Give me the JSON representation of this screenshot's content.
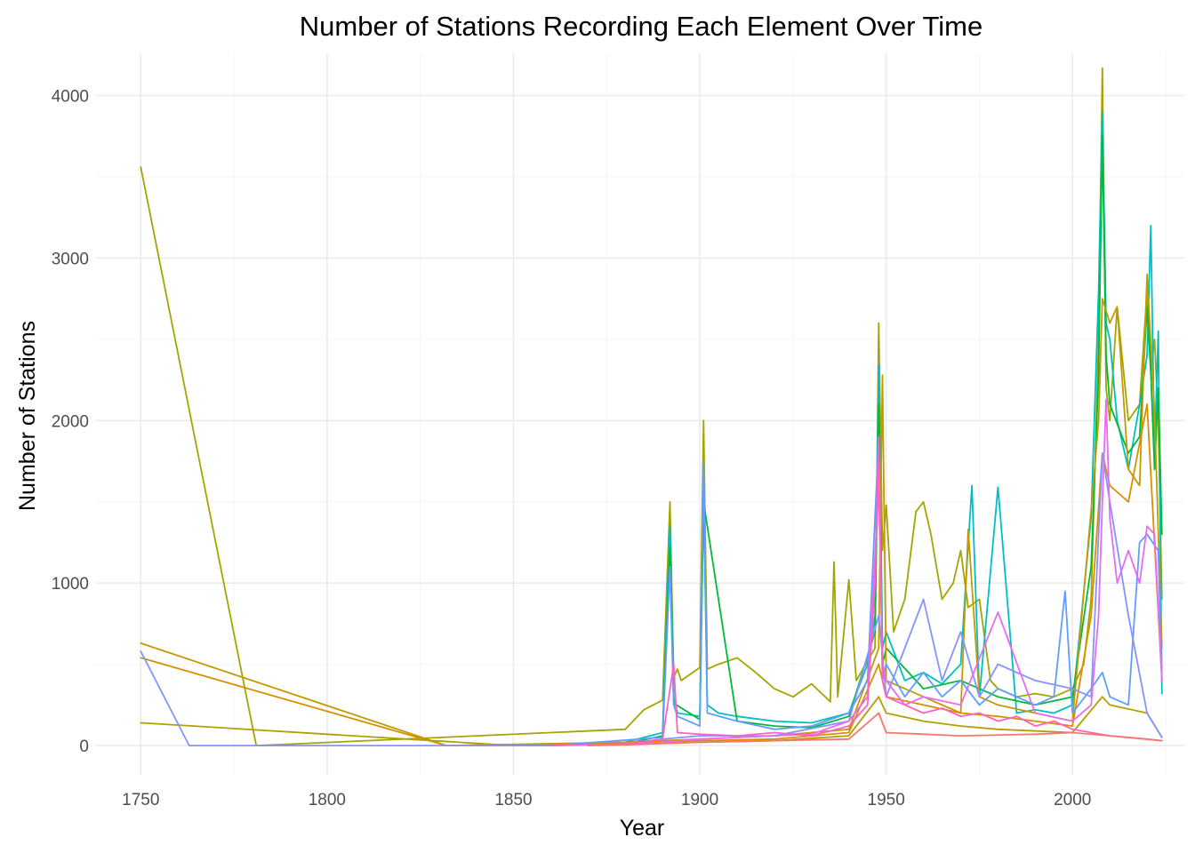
{
  "chart_data": {
    "type": "line",
    "title": "Number of Stations Recording Each Element Over Time",
    "xlabel": "Year",
    "ylabel": "Number of Stations",
    "xlim": [
      1738,
      2030
    ],
    "ylim": [
      -180,
      4260
    ],
    "x_ticks": [
      1750,
      1800,
      1850,
      1900,
      1950,
      2000
    ],
    "y_ticks": [
      0,
      1000,
      2000,
      3000,
      4000
    ],
    "grid": true,
    "legend": "none",
    "series": [
      {
        "color": "#A3A500",
        "x": [
          1750,
          1781,
          1880,
          1885,
          1890,
          1892,
          1893,
          1894,
          1895,
          1900,
          1901,
          1902,
          1905,
          1910,
          1915,
          1920,
          1925,
          1930,
          1935,
          1936,
          1937,
          1940,
          1942,
          1945,
          1947,
          1948,
          1949,
          1950,
          1952,
          1955,
          1958,
          1960,
          1962,
          1965,
          1968,
          1970,
          1972,
          1975,
          1978,
          1980,
          1985,
          1990,
          1995,
          2000,
          2003,
          2005,
          2007,
          2008,
          2009,
          2010,
          2012,
          2015,
          2018,
          2020,
          2021,
          2022,
          2023,
          2024
        ],
        "y": [
          3560,
          0,
          100,
          220,
          280,
          1500,
          420,
          470,
          400,
          480,
          2000,
          470,
          500,
          540,
          450,
          350,
          300,
          380,
          270,
          1130,
          300,
          1020,
          400,
          520,
          600,
          2600,
          1200,
          1480,
          700,
          900,
          1440,
          1500,
          1300,
          900,
          1000,
          1200,
          850,
          900,
          400,
          350,
          300,
          320,
          300,
          350,
          500,
          900,
          2500,
          4170,
          2200,
          2000,
          2700,
          2000,
          2100,
          2800,
          2300,
          2500,
          2000,
          900
        ]
      },
      {
        "color": "#00BFC4",
        "x": [
          1860,
          1880,
          1890,
          1892,
          1893,
          1894,
          1900,
          1901,
          1902,
          1905,
          1910,
          1920,
          1930,
          1940,
          1945,
          1947,
          1948,
          1949,
          1950,
          1955,
          1960,
          1965,
          1970,
          1973,
          1975,
          1980,
          1985,
          1990,
          1995,
          2000,
          2005,
          2007,
          2008,
          2009,
          2010,
          2012,
          2015,
          2018,
          2020,
          2021,
          2022,
          2023,
          2024
        ],
        "y": [
          0,
          20,
          80,
          1350,
          300,
          200,
          180,
          1550,
          250,
          200,
          180,
          150,
          140,
          200,
          500,
          800,
          2340,
          600,
          700,
          400,
          450,
          380,
          500,
          1600,
          300,
          1590,
          200,
          220,
          200,
          250,
          1400,
          2800,
          3900,
          2600,
          2500,
          2000,
          1700,
          2100,
          2400,
          3200,
          1800,
          2550,
          320
        ]
      },
      {
        "color": "#00BA38",
        "x": [
          1880,
          1890,
          1892,
          1893,
          1900,
          1901,
          1910,
          1920,
          1930,
          1940,
          1947,
          1948,
          1949,
          1950,
          1960,
          1970,
          1980,
          1990,
          2000,
          2005,
          2007,
          2008,
          2009,
          2010,
          2015,
          2018,
          2020,
          2021,
          2022,
          2023,
          2024
        ],
        "y": [
          10,
          60,
          1220,
          260,
          160,
          1500,
          150,
          120,
          110,
          180,
          700,
          2100,
          500,
          600,
          350,
          400,
          300,
          250,
          300,
          1100,
          2300,
          3750,
          2400,
          2100,
          1800,
          1900,
          2700,
          2300,
          1700,
          2200,
          1300
        ]
      },
      {
        "color": "#C49A00",
        "x": [
          1750,
          1832,
          1880,
          1900,
          1920,
          1940,
          1948,
          1949,
          1950,
          1960,
          1970,
          1972,
          1975,
          1980,
          1990,
          2000,
          2005,
          2007,
          2008,
          2010,
          2012,
          2015,
          2018,
          2020,
          2022,
          2024
        ],
        "y": [
          630,
          0,
          20,
          40,
          60,
          100,
          600,
          2280,
          400,
          300,
          200,
          1330,
          300,
          250,
          200,
          150,
          1450,
          2000,
          2750,
          2600,
          2700,
          1700,
          1600,
          2900,
          2050,
          600
        ]
      },
      {
        "color": "#D89000",
        "x": [
          1750,
          1832,
          1880,
          1900,
          1920,
          1940,
          1948,
          1950,
          1960,
          1970,
          1980,
          1990,
          2000,
          2005,
          2008,
          2010,
          2015,
          2020,
          2024
        ],
        "y": [
          540,
          0,
          15,
          30,
          40,
          80,
          500,
          300,
          250,
          200,
          180,
          150,
          120,
          800,
          1800,
          1600,
          1500,
          2100,
          400
        ]
      },
      {
        "color": "#B0A000",
        "x": [
          1750,
          1850,
          1880,
          1900,
          1920,
          1940,
          1948,
          1950,
          1960,
          1970,
          1980,
          2000,
          2008,
          2010,
          2020,
          2024
        ],
        "y": [
          140,
          0,
          10,
          20,
          30,
          60,
          300,
          200,
          150,
          120,
          100,
          80,
          300,
          250,
          200,
          50
        ]
      },
      {
        "color": "#619CFF",
        "x": [
          1860,
          1890,
          1892,
          1893,
          1894,
          1900,
          1901,
          1902,
          1910,
          1920,
          1930,
          1940,
          1945,
          1948,
          1949,
          1950,
          1955,
          1960,
          1965,
          1970,
          1975,
          1980,
          1985,
          1990,
          1995,
          1998,
          2000,
          2005,
          2008,
          2010,
          2015,
          2018,
          2020,
          2023,
          2024
        ],
        "y": [
          0,
          50,
          1100,
          250,
          180,
          120,
          1750,
          200,
          150,
          100,
          120,
          200,
          400,
          1900,
          400,
          500,
          300,
          450,
          300,
          400,
          250,
          350,
          300,
          250,
          300,
          950,
          200,
          350,
          450,
          300,
          250,
          1250,
          1300,
          1200,
          400
        ]
      },
      {
        "color": "#8494FF",
        "x": [
          1750,
          1763,
          1860,
          1880,
          1890,
          1900,
          1920,
          1940,
          1948,
          1950,
          1960,
          1965,
          1970,
          1975,
          1980,
          1990,
          2000,
          2005,
          2008,
          2010,
          2015,
          2020,
          2024
        ],
        "y": [
          580,
          0,
          0,
          10,
          40,
          60,
          60,
          150,
          800,
          300,
          900,
          400,
          700,
          300,
          500,
          400,
          350,
          300,
          1800,
          1500,
          800,
          200,
          50
        ]
      },
      {
        "color": "#E76BF3",
        "x": [
          1880,
          1890,
          1900,
          1910,
          1920,
          1930,
          1940,
          1945,
          1948,
          1949,
          1950,
          1955,
          1960,
          1970,
          1980,
          1990,
          2000,
          2005,
          2007,
          2008,
          2009,
          2010,
          2012,
          2015,
          2018,
          2020,
          2022,
          2024
        ],
        "y": [
          5,
          20,
          40,
          50,
          60,
          70,
          150,
          300,
          1600,
          500,
          400,
          250,
          300,
          250,
          820,
          200,
          150,
          250,
          800,
          1500,
          2130,
          1400,
          1000,
          1200,
          1000,
          1350,
          1300,
          400
        ]
      },
      {
        "color": "#FF61C3",
        "x": [
          1860,
          1880,
          1890,
          1893,
          1894,
          1900,
          1910,
          1920,
          1930,
          1940,
          1945,
          1947,
          1948,
          1949,
          1950,
          1955,
          1960,
          1965,
          1970,
          1975,
          1980,
          1985,
          1990,
          1995,
          2000,
          2005,
          2010,
          2015,
          2020,
          2024
        ],
        "y": [
          0,
          10,
          40,
          500,
          80,
          70,
          60,
          80,
          60,
          120,
          250,
          1000,
          1900,
          400,
          300,
          250,
          200,
          230,
          180,
          200,
          150,
          180,
          120,
          150,
          100,
          80,
          60,
          50,
          40,
          30
        ]
      },
      {
        "color": "#F8766D",
        "x": [
          1870,
          1880,
          1900,
          1920,
          1940,
          1948,
          1950,
          1970,
          1990,
          2000,
          2010,
          2024
        ],
        "y": [
          0,
          5,
          20,
          30,
          40,
          200,
          80,
          60,
          70,
          80,
          60,
          30
        ]
      }
    ]
  }
}
